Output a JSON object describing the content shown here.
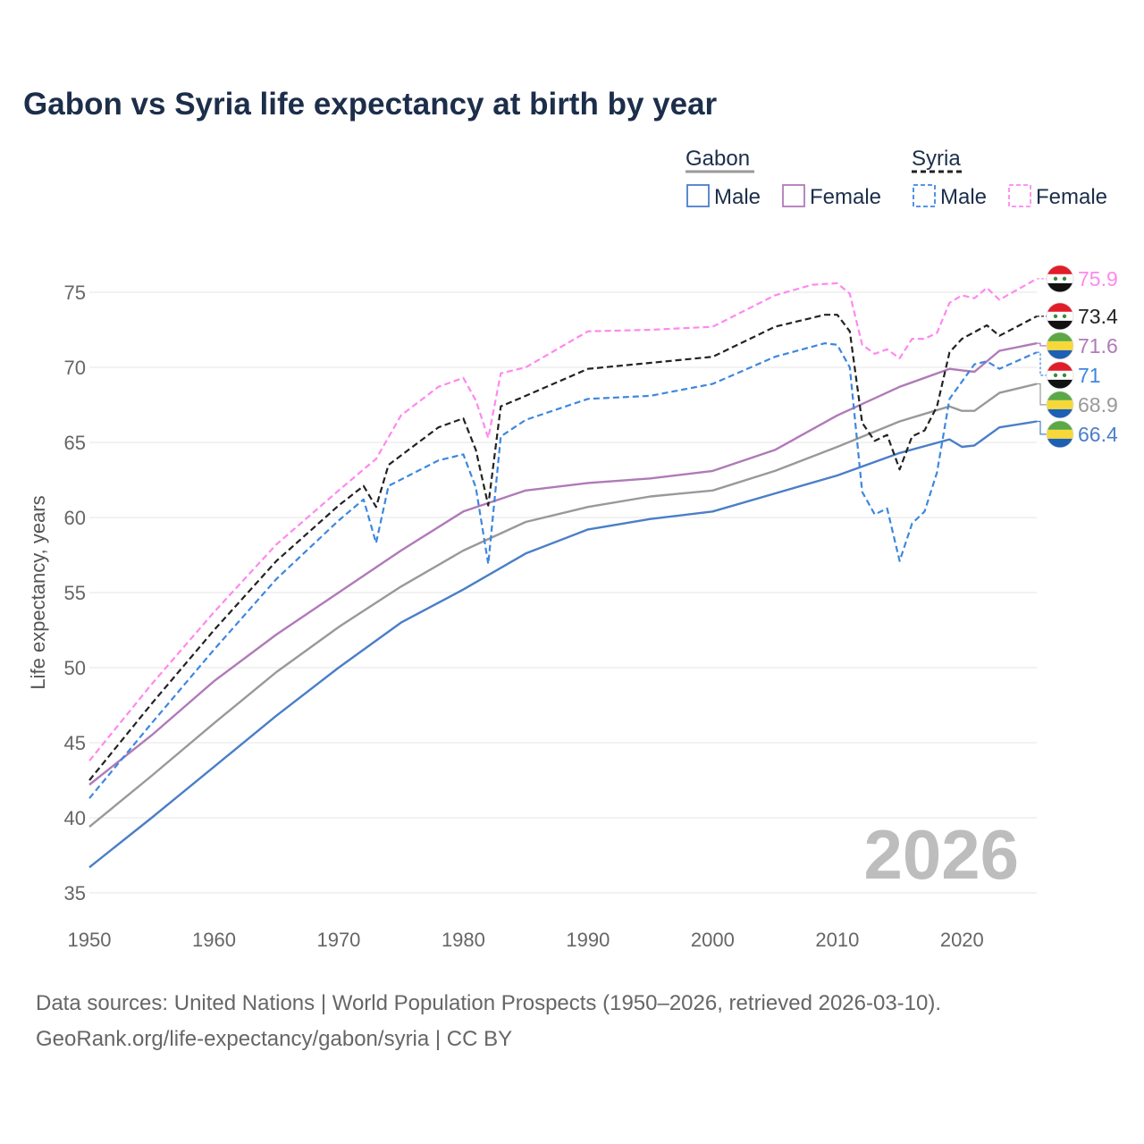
{
  "chart_data": {
    "type": "line",
    "title": "Gabon vs Syria life expectancy at birth by year",
    "xlabel": "",
    "ylabel": "Life expectancy, years",
    "xlim": [
      1950,
      2026
    ],
    "ylim": [
      35,
      77
    ],
    "x_ticks": [
      1950,
      1960,
      1970,
      1980,
      1990,
      2000,
      2010,
      2020
    ],
    "y_ticks": [
      35,
      40,
      45,
      50,
      55,
      60,
      65,
      70,
      75
    ],
    "current_year": "2026",
    "legend": {
      "groups": [
        {
          "name": "Gabon",
          "items": [
            "Male",
            "Female"
          ]
        },
        {
          "name": "Syria",
          "items": [
            "Male",
            "Female"
          ]
        }
      ]
    },
    "series": [
      {
        "id": "gabon-male",
        "country": "Gabon",
        "sex": "Male",
        "color": "#4a7ec8",
        "dash": "solid",
        "end_label": "66.4",
        "flag": "gabon",
        "points": [
          [
            1950,
            36.7
          ],
          [
            1955,
            40.0
          ],
          [
            1960,
            43.4
          ],
          [
            1965,
            46.8
          ],
          [
            1970,
            50.0
          ],
          [
            1975,
            53.0
          ],
          [
            1980,
            55.2
          ],
          [
            1985,
            57.6
          ],
          [
            1990,
            59.2
          ],
          [
            1995,
            59.9
          ],
          [
            2000,
            60.4
          ],
          [
            2005,
            61.6
          ],
          [
            2010,
            62.8
          ],
          [
            2015,
            64.3
          ],
          [
            2019,
            65.2
          ],
          [
            2020,
            64.7
          ],
          [
            2021,
            64.8
          ],
          [
            2023,
            66.0
          ],
          [
            2026,
            66.4
          ]
        ]
      },
      {
        "id": "gabon-total",
        "country": "Gabon",
        "sex": "Both",
        "color": "#999999",
        "dash": "solid",
        "end_label": "68.9",
        "flag": "gabon",
        "points": [
          [
            1950,
            39.4
          ],
          [
            1955,
            42.8
          ],
          [
            1960,
            46.3
          ],
          [
            1965,
            49.7
          ],
          [
            1970,
            52.7
          ],
          [
            1975,
            55.4
          ],
          [
            1980,
            57.8
          ],
          [
            1985,
            59.7
          ],
          [
            1990,
            60.7
          ],
          [
            1995,
            61.4
          ],
          [
            2000,
            61.8
          ],
          [
            2005,
            63.1
          ],
          [
            2010,
            64.7
          ],
          [
            2015,
            66.4
          ],
          [
            2019,
            67.4
          ],
          [
            2020,
            67.1
          ],
          [
            2021,
            67.1
          ],
          [
            2023,
            68.3
          ],
          [
            2026,
            68.9
          ]
        ]
      },
      {
        "id": "gabon-female",
        "country": "Gabon",
        "sex": "Female",
        "color": "#b07ab8",
        "dash": "solid",
        "end_label": "71.6",
        "flag": "gabon",
        "points": [
          [
            1950,
            42.2
          ],
          [
            1955,
            45.5
          ],
          [
            1960,
            49.1
          ],
          [
            1965,
            52.2
          ],
          [
            1970,
            55.0
          ],
          [
            1975,
            57.8
          ],
          [
            1980,
            60.4
          ],
          [
            1985,
            61.8
          ],
          [
            1990,
            62.3
          ],
          [
            1995,
            62.6
          ],
          [
            2000,
            63.1
          ],
          [
            2005,
            64.5
          ],
          [
            2010,
            66.8
          ],
          [
            2015,
            68.7
          ],
          [
            2019,
            69.9
          ],
          [
            2020,
            69.8
          ],
          [
            2021,
            69.7
          ],
          [
            2023,
            71.1
          ],
          [
            2026,
            71.6
          ]
        ]
      },
      {
        "id": "syria-male",
        "country": "Syria",
        "sex": "Male",
        "color": "#3d87e0",
        "dash": "dashed",
        "end_label": "71",
        "flag": "syria",
        "points": [
          [
            1950,
            41.3
          ],
          [
            1955,
            46.3
          ],
          [
            1960,
            51.2
          ],
          [
            1965,
            55.9
          ],
          [
            1970,
            59.8
          ],
          [
            1972,
            61.2
          ],
          [
            1973,
            58.3
          ],
          [
            1974,
            62.1
          ],
          [
            1978,
            63.8
          ],
          [
            1980,
            64.2
          ],
          [
            1981,
            62.0
          ],
          [
            1982,
            56.9
          ],
          [
            1983,
            65.4
          ],
          [
            1985,
            66.5
          ],
          [
            1990,
            67.9
          ],
          [
            1995,
            68.1
          ],
          [
            2000,
            68.9
          ],
          [
            2005,
            70.7
          ],
          [
            2009,
            71.6
          ],
          [
            2010,
            71.5
          ],
          [
            2011,
            70.0
          ],
          [
            2012,
            61.7
          ],
          [
            2013,
            60.2
          ],
          [
            2014,
            60.6
          ],
          [
            2015,
            57.1
          ],
          [
            2016,
            59.6
          ],
          [
            2017,
            60.4
          ],
          [
            2018,
            63.0
          ],
          [
            2019,
            67.9
          ],
          [
            2021,
            70.2
          ],
          [
            2022,
            70.4
          ],
          [
            2023,
            69.9
          ],
          [
            2026,
            71.0
          ]
        ]
      },
      {
        "id": "syria-total",
        "country": "Syria",
        "sex": "Both",
        "color": "#222222",
        "dash": "dashed",
        "end_label": "73.4",
        "flag": "syria",
        "points": [
          [
            1950,
            42.5
          ],
          [
            1955,
            47.6
          ],
          [
            1960,
            52.5
          ],
          [
            1965,
            57.1
          ],
          [
            1970,
            60.8
          ],
          [
            1972,
            62.1
          ],
          [
            1973,
            60.7
          ],
          [
            1974,
            63.5
          ],
          [
            1978,
            66.0
          ],
          [
            1980,
            66.6
          ],
          [
            1981,
            64.5
          ],
          [
            1982,
            60.8
          ],
          [
            1983,
            67.4
          ],
          [
            1985,
            68.1
          ],
          [
            1990,
            69.9
          ],
          [
            1995,
            70.3
          ],
          [
            2000,
            70.7
          ],
          [
            2005,
            72.7
          ],
          [
            2009,
            73.5
          ],
          [
            2010,
            73.5
          ],
          [
            2011,
            72.4
          ],
          [
            2012,
            66.3
          ],
          [
            2013,
            65.1
          ],
          [
            2014,
            65.5
          ],
          [
            2015,
            63.2
          ],
          [
            2016,
            65.4
          ],
          [
            2017,
            65.8
          ],
          [
            2018,
            67.4
          ],
          [
            2019,
            71.0
          ],
          [
            2020,
            71.9
          ],
          [
            2022,
            72.8
          ],
          [
            2023,
            72.1
          ],
          [
            2026,
            73.4
          ]
        ]
      },
      {
        "id": "syria-female",
        "country": "Syria",
        "sex": "Female",
        "color": "#ff88ee",
        "dash": "dashed",
        "end_label": "75.9",
        "flag": "syria",
        "points": [
          [
            1950,
            43.8
          ],
          [
            1955,
            48.9
          ],
          [
            1960,
            53.7
          ],
          [
            1965,
            58.2
          ],
          [
            1970,
            61.8
          ],
          [
            1972,
            63.2
          ],
          [
            1973,
            63.9
          ],
          [
            1975,
            66.8
          ],
          [
            1978,
            68.7
          ],
          [
            1980,
            69.3
          ],
          [
            1981,
            67.8
          ],
          [
            1982,
            65.3
          ],
          [
            1983,
            69.6
          ],
          [
            1985,
            70.0
          ],
          [
            1990,
            72.4
          ],
          [
            1995,
            72.5
          ],
          [
            2000,
            72.7
          ],
          [
            2005,
            74.8
          ],
          [
            2008,
            75.5
          ],
          [
            2010,
            75.6
          ],
          [
            2011,
            74.9
          ],
          [
            2012,
            71.5
          ],
          [
            2013,
            70.9
          ],
          [
            2014,
            71.2
          ],
          [
            2015,
            70.6
          ],
          [
            2016,
            71.9
          ],
          [
            2017,
            71.9
          ],
          [
            2018,
            72.3
          ],
          [
            2019,
            74.3
          ],
          [
            2020,
            74.8
          ],
          [
            2021,
            74.6
          ],
          [
            2022,
            75.3
          ],
          [
            2023,
            74.5
          ],
          [
            2026,
            75.9
          ]
        ]
      }
    ]
  },
  "source": {
    "line1": "Data sources: United Nations | World Population Prospects (1950–2026, retrieved 2026-03-10).",
    "line2": "GeoRank.org/life-expectancy/gabon/syria | CC BY"
  }
}
